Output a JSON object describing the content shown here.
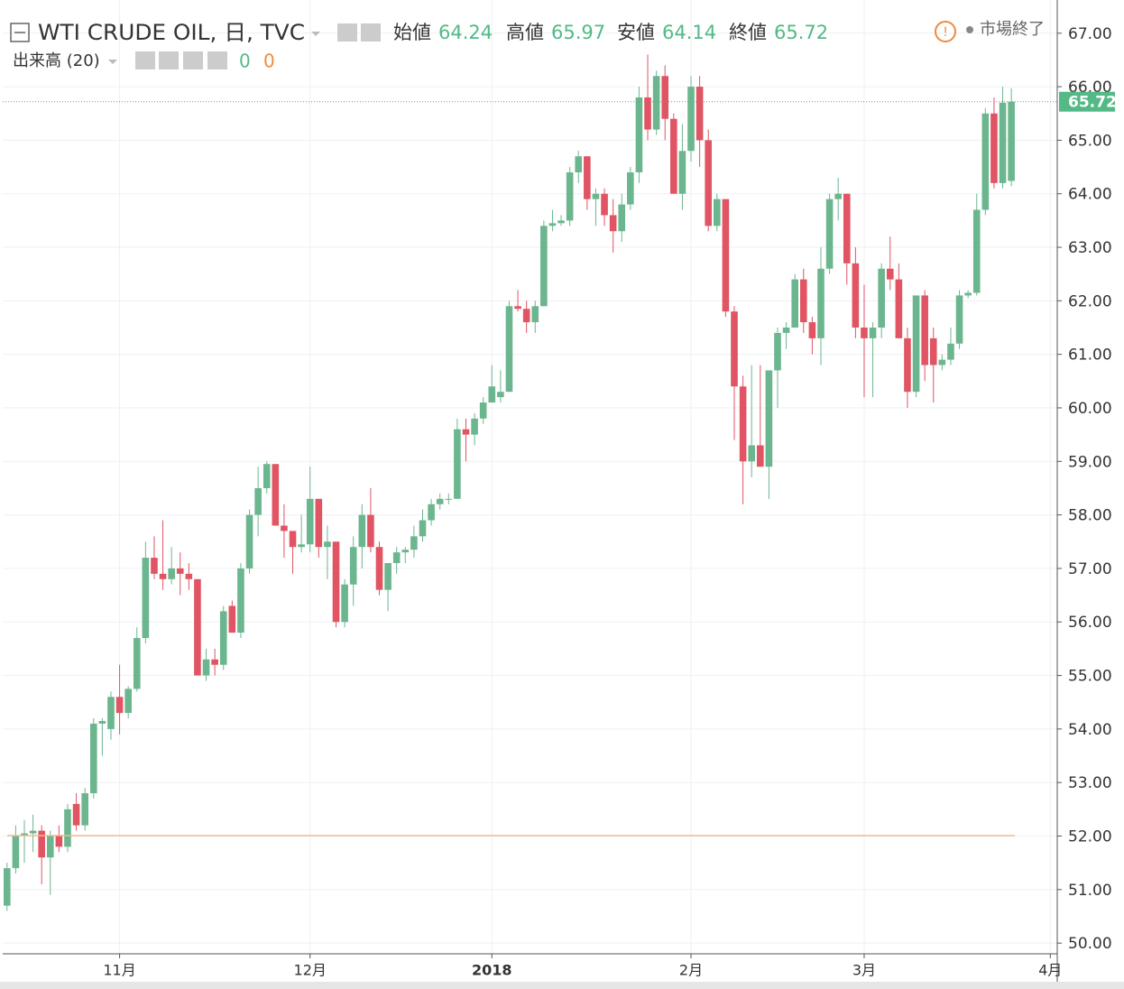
{
  "chart_data": {
    "type": "candlestick",
    "title": "WTI CRUDE OIL, 日, TVC",
    "ohlc_labels": [
      "始値",
      "高値",
      "安値",
      "終値"
    ],
    "ohlc_values": [
      64.24,
      65.97,
      64.14,
      65.72
    ],
    "volume_label": "出来高 (20)",
    "volume_values": [
      0,
      0
    ],
    "status": "市場終了",
    "last_price": 65.72,
    "up_color": "#6bb68e",
    "down_color": "#e05463",
    "open": [
      50.7,
      51.4,
      52.0,
      52.05,
      52.1,
      51.6,
      52.0,
      51.8,
      52.6,
      52.2,
      52.8,
      54.1,
      54.0,
      54.6,
      54.3,
      54.75,
      55.7,
      57.2,
      56.9,
      56.8,
      57.0,
      56.9,
      56.8,
      55.0,
      55.3,
      55.2,
      56.3,
      55.8,
      57.0,
      58.0,
      58.5,
      58.95,
      57.8,
      57.7,
      57.4,
      57.45,
      58.3,
      57.4,
      57.5,
      56.0,
      56.7,
      57.4,
      58.0,
      57.4,
      56.6,
      57.1,
      57.3,
      57.35,
      57.6,
      57.9,
      58.2,
      58.3,
      58.3,
      59.6,
      59.5,
      59.8,
      60.1,
      60.2,
      60.3,
      61.9,
      61.85,
      61.6,
      61.9,
      63.4,
      63.45,
      63.5,
      64.4,
      64.7,
      63.9,
      64.0,
      63.6,
      63.3,
      63.8,
      64.4,
      65.8,
      65.2,
      66.2,
      65.4,
      64.0,
      64.8,
      66.0,
      65.0,
      63.4,
      63.9,
      61.8,
      60.4,
      59.0,
      59.3,
      58.9,
      60.7,
      61.4,
      61.5,
      62.4,
      61.6,
      61.3,
      62.6,
      63.9,
      64.0,
      62.7,
      61.5,
      61.3,
      61.5,
      62.6,
      62.4,
      61.3,
      60.3,
      62.1,
      61.3,
      60.8,
      60.9,
      61.2,
      62.1,
      62.15,
      63.7,
      65.5,
      64.2,
      64.24
    ],
    "high": [
      51.5,
      52.2,
      52.3,
      52.4,
      52.2,
      52.1,
      52.2,
      52.6,
      52.8,
      52.9,
      54.2,
      54.2,
      54.7,
      55.2,
      54.8,
      55.9,
      57.5,
      57.6,
      57.9,
      57.4,
      57.3,
      57.1,
      56.8,
      55.5,
      55.5,
      56.3,
      56.4,
      57.1,
      58.1,
      58.9,
      59.0,
      58.95,
      58.2,
      57.7,
      58.0,
      58.9,
      58.3,
      57.8,
      57.5,
      56.8,
      57.6,
      58.2,
      58.5,
      57.5,
      57.1,
      57.4,
      57.4,
      57.8,
      58.1,
      58.3,
      58.4,
      58.4,
      59.8,
      59.8,
      59.9,
      60.2,
      60.8,
      60.7,
      62.0,
      62.2,
      62.0,
      62.0,
      63.5,
      63.7,
      63.6,
      64.5,
      64.8,
      64.7,
      64.1,
      64.1,
      63.9,
      64.0,
      64.5,
      66.0,
      66.6,
      66.3,
      66.4,
      65.5,
      65.3,
      66.2,
      66.2,
      65.2,
      64.0,
      63.9,
      61.9,
      60.6,
      60.8,
      60.8,
      60.7,
      61.5,
      61.6,
      62.5,
      62.6,
      61.7,
      63.0,
      64.0,
      64.3,
      64.0,
      63.0,
      62.3,
      61.6,
      62.7,
      63.2,
      62.7,
      61.5,
      62.1,
      62.2,
      61.5,
      61.0,
      61.5,
      62.2,
      62.2,
      64.0,
      65.6,
      65.8,
      66.0,
      65.97
    ],
    "low": [
      50.6,
      51.3,
      51.5,
      51.7,
      51.1,
      50.9,
      51.7,
      51.7,
      52.1,
      52.1,
      52.7,
      53.5,
      53.8,
      53.9,
      54.2,
      54.7,
      55.6,
      56.8,
      56.6,
      56.7,
      56.5,
      56.6,
      55.0,
      54.9,
      55.0,
      55.1,
      55.8,
      55.7,
      56.9,
      57.6,
      58.4,
      57.8,
      57.2,
      56.9,
      57.3,
      57.3,
      57.2,
      56.8,
      55.9,
      55.9,
      56.3,
      57.0,
      57.3,
      56.5,
      56.2,
      56.9,
      57.1,
      57.2,
      57.5,
      57.8,
      58.1,
      58.2,
      58.3,
      59.0,
      59.3,
      59.7,
      60.1,
      60.1,
      60.3,
      61.8,
      61.4,
      61.4,
      61.9,
      63.3,
      63.4,
      63.4,
      64.2,
      63.7,
      63.4,
      63.4,
      62.9,
      63.1,
      63.7,
      64.2,
      65.0,
      65.1,
      65.0,
      64.0,
      63.7,
      64.6,
      64.5,
      63.3,
      63.3,
      61.7,
      59.4,
      58.2,
      58.7,
      58.9,
      58.3,
      60.0,
      61.1,
      61.5,
      61.4,
      61.0,
      60.8,
      62.5,
      63.5,
      62.3,
      61.3,
      60.2,
      60.2,
      61.3,
      62.2,
      61.3,
      60.0,
      60.2,
      60.5,
      60.1,
      60.7,
      60.8,
      61.1,
      62.05,
      62.1,
      63.6,
      64.1,
      64.1,
      64.14
    ],
    "close": [
      51.4,
      52.0,
      52.05,
      52.1,
      51.6,
      52.0,
      51.8,
      52.5,
      52.2,
      52.8,
      54.1,
      54.15,
      54.6,
      54.3,
      54.75,
      55.7,
      57.2,
      56.9,
      56.8,
      57.0,
      56.9,
      56.8,
      55.0,
      55.3,
      55.2,
      56.2,
      55.8,
      57.0,
      58.0,
      58.5,
      58.95,
      57.8,
      57.7,
      57.4,
      57.45,
      58.3,
      57.4,
      57.5,
      56.0,
      56.7,
      57.4,
      58.0,
      57.4,
      56.6,
      57.1,
      57.3,
      57.35,
      57.6,
      57.9,
      58.2,
      58.3,
      58.3,
      59.6,
      59.5,
      59.8,
      60.1,
      60.4,
      60.3,
      61.9,
      61.85,
      61.6,
      61.9,
      63.4,
      63.45,
      63.5,
      64.4,
      64.7,
      63.9,
      64.0,
      63.6,
      63.3,
      63.8,
      64.4,
      65.8,
      65.2,
      66.2,
      65.4,
      64.0,
      64.8,
      66.0,
      65.0,
      63.4,
      63.9,
      61.8,
      60.4,
      59.0,
      59.3,
      58.9,
      60.7,
      61.4,
      61.5,
      62.4,
      61.6,
      61.3,
      62.6,
      63.9,
      64.0,
      62.7,
      61.5,
      61.3,
      61.5,
      62.6,
      62.4,
      61.3,
      60.3,
      62.1,
      60.8,
      60.8,
      60.9,
      61.2,
      62.1,
      62.15,
      63.7,
      65.5,
      64.2,
      65.7,
      65.72
    ],
    "xlim": [
      -0.5,
      121.3
    ],
    "xticks": [
      {
        "value": 13,
        "label": "11月"
      },
      {
        "value": 35,
        "label": "12月"
      },
      {
        "value": 56,
        "label": "2018"
      },
      {
        "value": 79,
        "label": "2月"
      },
      {
        "value": 99,
        "label": "3月"
      },
      {
        "value": 120.5,
        "label": "4月"
      }
    ],
    "ylim": [
      49.8,
      67.62
    ],
    "yticks": [
      {
        "value": 50,
        "label": "50.00"
      },
      {
        "value": 51,
        "label": "51.00"
      },
      {
        "value": 52,
        "label": "52.00"
      },
      {
        "value": 53,
        "label": "53.00"
      },
      {
        "value": 54,
        "label": "54.00"
      },
      {
        "value": 55,
        "label": "55.00"
      },
      {
        "value": 56,
        "label": "56.00"
      },
      {
        "value": 57,
        "label": "57.00"
      },
      {
        "value": 58,
        "label": "58.00"
      },
      {
        "value": 59,
        "label": "59.00"
      },
      {
        "value": 60,
        "label": "60.00"
      },
      {
        "value": 61,
        "label": "61.00"
      },
      {
        "value": 62,
        "label": "62.00"
      },
      {
        "value": 63,
        "label": "63.00"
      },
      {
        "value": 64,
        "label": "64.00"
      },
      {
        "value": 65,
        "label": "65.00"
      },
      {
        "value": 66,
        "label": "66.00"
      },
      {
        "value": 67,
        "label": "67.00"
      }
    ],
    "grid": true
  }
}
